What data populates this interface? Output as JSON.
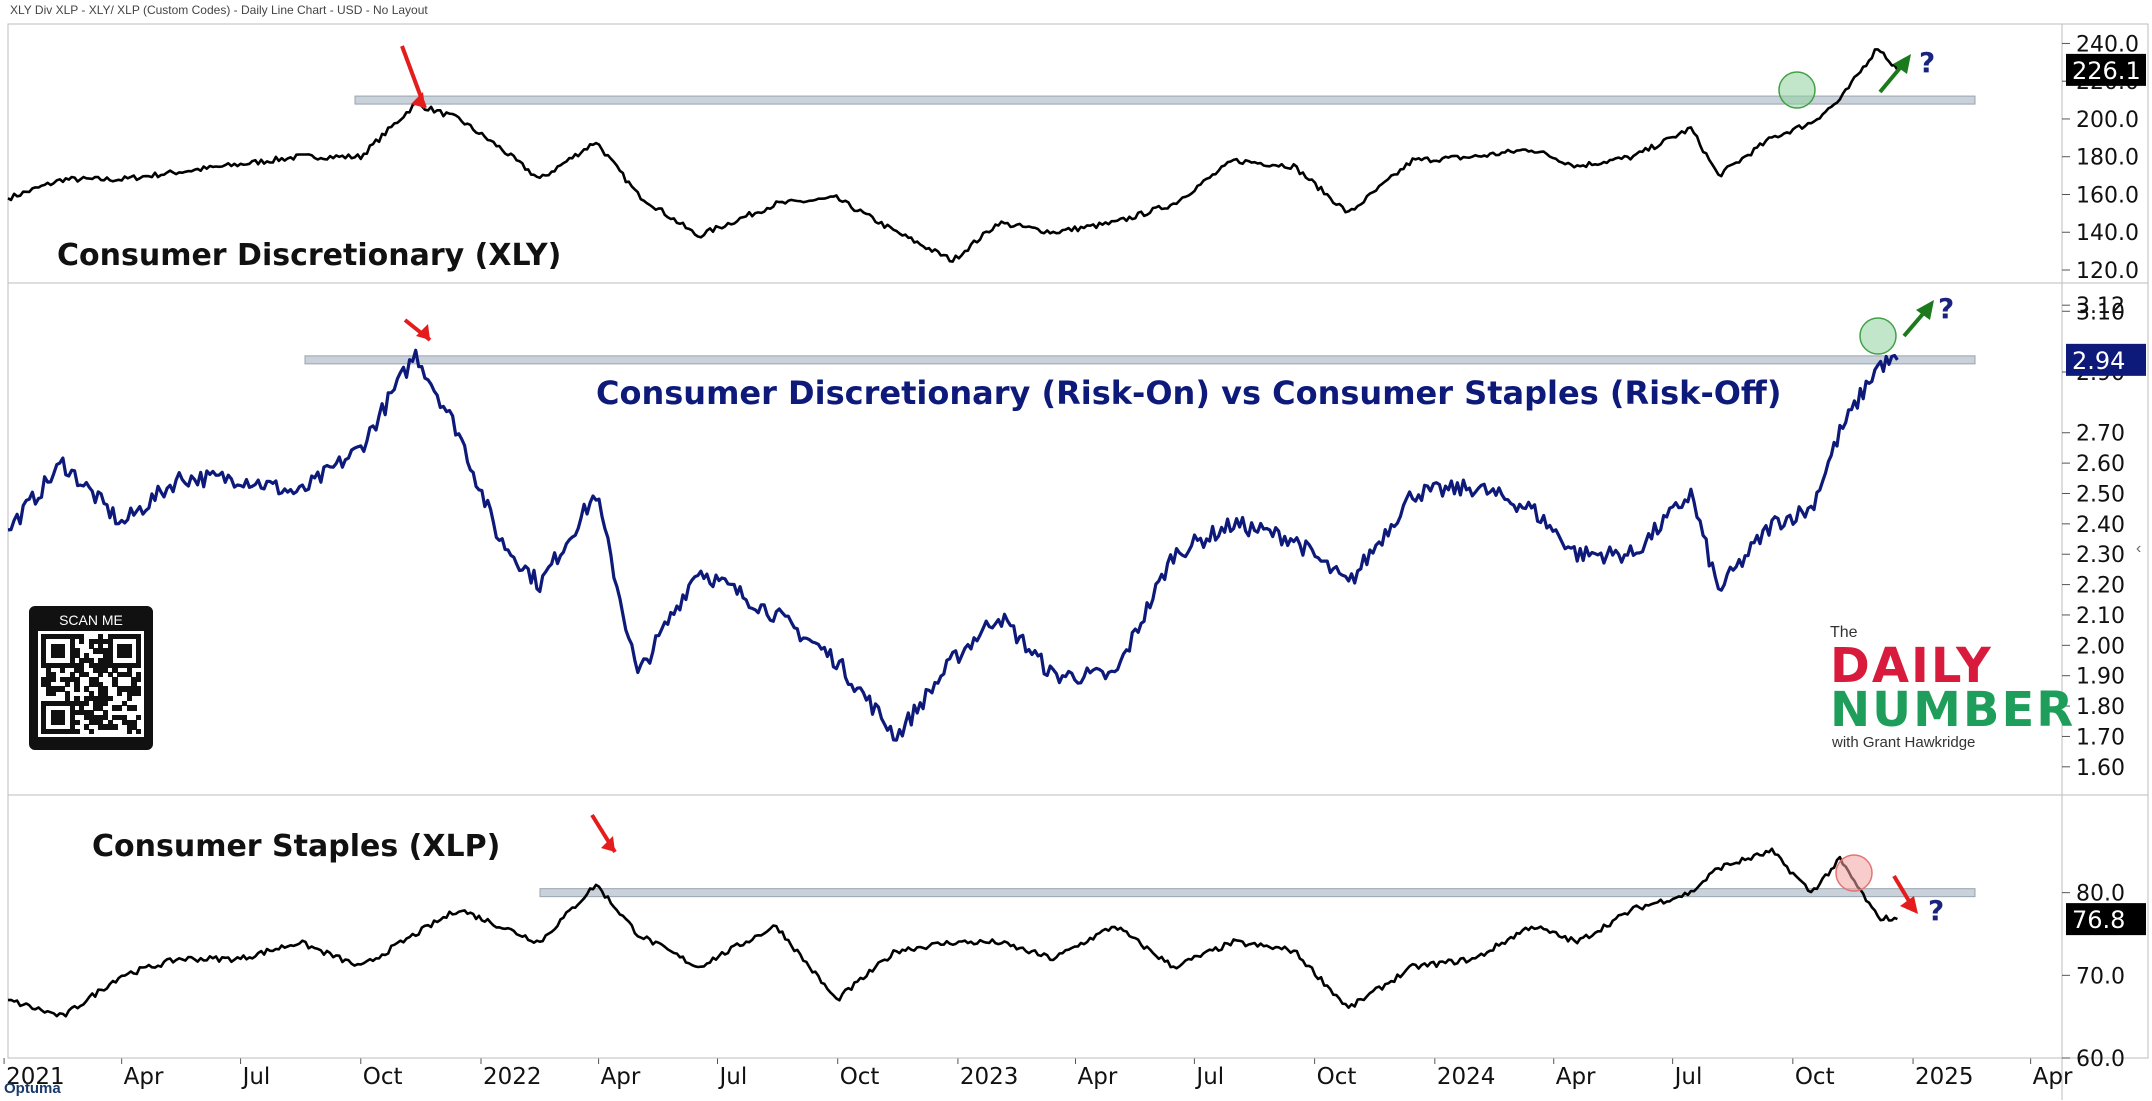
{
  "header": {
    "subtitle": "XLY Div XLP - XLY/ XLP (Custom Codes) - Daily Line Chart - USD - No Layout"
  },
  "footer": {
    "logo_text": "Optuma"
  },
  "qr": {
    "label": "SCAN ME"
  },
  "brand": {
    "the": "The",
    "daily": "DAILY",
    "number": "NUMBER",
    "with": "with Grant Hawkridge"
  },
  "colors": {
    "price_line": "#000000",
    "ratio_line": "#0d1a7a",
    "resistance_band": "#c9d1da",
    "bull_arrow": "#1b7a1b",
    "bear_arrow": "#e41c1c",
    "bull_circle": "#8fd19e",
    "bear_circle": "#f4a3a3",
    "question_mark": "#1a237e",
    "panel_border": "#bdbdbd"
  },
  "chart_data": [
    {
      "type": "line",
      "title": "Consumer Discretionary (XLY)",
      "series": [],
      "x": [
        "2021-01-04",
        "2021-02-15",
        "2021-04-01",
        "2021-05-15",
        "2021-07-01",
        "2021-08-15",
        "2021-10-01",
        "2021-11-12",
        "2021-12-15",
        "2022-01-15",
        "2022-02-15",
        "2022-03-30",
        "2022-05-01",
        "2022-06-16",
        "2022-08-15",
        "2022-09-30",
        "2022-11-15",
        "2022-12-28",
        "2023-02-01",
        "2023-03-15",
        "2023-05-01",
        "2023-06-15",
        "2023-07-31",
        "2023-09-15",
        "2023-10-27",
        "2023-12-15",
        "2024-02-01",
        "2024-03-15",
        "2024-04-19",
        "2024-06-01",
        "2024-07-15",
        "2024-08-05",
        "2024-09-15",
        "2024-10-15",
        "2024-11-06",
        "2024-12-05",
        "2024-12-20"
      ],
      "y": [
        158,
        168,
        168,
        172,
        176,
        180,
        180,
        208,
        200,
        185,
        168,
        188,
        160,
        138,
        155,
        158,
        140,
        125,
        145,
        140,
        145,
        155,
        178,
        175,
        150,
        178,
        180,
        184,
        175,
        180,
        195,
        170,
        190,
        198,
        210,
        238,
        226
      ],
      "last_value": "226.1",
      "ylim": [
        120,
        245
      ],
      "yticks": [
        "120.0",
        "140.0",
        "160.0",
        "180.0",
        "200.0",
        "220.0",
        "240.0"
      ],
      "resistance_level": 210,
      "annotations": {
        "question": "?"
      }
    },
    {
      "type": "line",
      "title": "Consumer Discretionary (Risk-On) vs Consumer Staples (Risk-Off)",
      "series": [],
      "x": [
        "2021-01-04",
        "2021-02-15",
        "2021-04-01",
        "2021-05-15",
        "2021-07-01",
        "2021-08-15",
        "2021-10-01",
        "2021-11-12",
        "2021-12-15",
        "2022-01-15",
        "2022-02-15",
        "2022-03-30",
        "2022-05-01",
        "2022-06-16",
        "2022-08-15",
        "2022-09-30",
        "2022-11-15",
        "2022-12-28",
        "2023-02-01",
        "2023-03-15",
        "2023-05-01",
        "2023-06-15",
        "2023-07-31",
        "2023-09-15",
        "2023-10-27",
        "2023-12-15",
        "2024-02-01",
        "2024-03-15",
        "2024-04-19",
        "2024-06-01",
        "2024-07-15",
        "2024-08-05",
        "2024-09-15",
        "2024-10-15",
        "2024-11-06",
        "2024-12-05",
        "2024-12-20"
      ],
      "y": [
        2.38,
        2.6,
        2.4,
        2.55,
        2.55,
        2.5,
        2.65,
        2.96,
        2.7,
        2.35,
        2.2,
        2.5,
        1.9,
        2.25,
        2.1,
        1.95,
        1.7,
        1.95,
        2.1,
        1.9,
        1.9,
        2.3,
        2.4,
        2.35,
        2.2,
        2.5,
        2.52,
        2.45,
        2.3,
        2.3,
        2.5,
        2.18,
        2.4,
        2.45,
        2.7,
        2.92,
        2.94
      ],
      "last_value": "2.94",
      "ylim": [
        1.55,
        3.17
      ],
      "yticks": [
        "1.60",
        "1.70",
        "1.80",
        "1.90",
        "2.00",
        "2.10",
        "2.20",
        "2.30",
        "2.40",
        "2.50",
        "2.60",
        "2.70",
        "2.90",
        "3.10",
        "3.12"
      ],
      "resistance_level": 2.94,
      "annotations": {
        "question": "?"
      }
    },
    {
      "type": "line",
      "title": "Consumer Staples (XLP)",
      "series": [],
      "x": [
        "2021-01-04",
        "2021-02-15",
        "2021-04-01",
        "2021-05-15",
        "2021-07-01",
        "2021-08-15",
        "2021-10-01",
        "2021-11-12",
        "2021-12-15",
        "2022-01-15",
        "2022-02-15",
        "2022-03-30",
        "2022-05-01",
        "2022-06-16",
        "2022-08-15",
        "2022-09-30",
        "2022-11-15",
        "2022-12-28",
        "2023-02-01",
        "2023-03-15",
        "2023-05-01",
        "2023-06-15",
        "2023-07-31",
        "2023-09-15",
        "2023-10-27",
        "2023-12-15",
        "2024-02-01",
        "2024-03-15",
        "2024-04-19",
        "2024-06-01",
        "2024-07-15",
        "2024-08-05",
        "2024-09-15",
        "2024-10-15",
        "2024-11-06",
        "2024-12-05",
        "2024-12-20"
      ],
      "y": [
        67,
        65,
        70,
        72,
        72,
        74,
        71,
        75,
        78,
        76,
        74,
        81,
        75,
        71,
        76,
        67,
        73,
        74,
        74,
        72,
        76,
        71,
        74,
        73,
        66,
        71,
        72,
        76,
        74,
        78,
        80,
        83,
        85,
        80,
        84,
        77,
        76.8
      ],
      "last_value": "76.8",
      "ylim": [
        60,
        90
      ],
      "yticks": [
        "60.0",
        "70.0",
        "80.0"
      ],
      "resistance_level": 80,
      "annotations": {
        "question": "?"
      }
    }
  ],
  "x_axis": {
    "labels": [
      "2021",
      "Apr",
      "Jul",
      "Oct",
      "2022",
      "Apr",
      "Jul",
      "Oct",
      "2023",
      "Apr",
      "Jul",
      "Oct",
      "2024",
      "Apr",
      "Jul",
      "Oct",
      "2025",
      "Apr"
    ],
    "dates": [
      "2021-01-01",
      "2021-04-01",
      "2021-07-01",
      "2021-10-01",
      "2022-01-01",
      "2022-04-01",
      "2022-07-01",
      "2022-10-01",
      "2023-01-01",
      "2023-04-01",
      "2023-07-01",
      "2023-10-01",
      "2024-01-01",
      "2024-04-01",
      "2024-07-01",
      "2024-10-01",
      "2025-01-01",
      "2025-04-01"
    ]
  }
}
